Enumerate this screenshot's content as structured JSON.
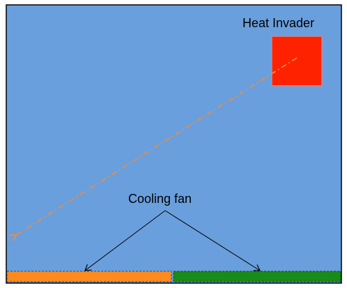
{
  "diagram": {
    "labels": {
      "heat_invader": "Heat Invader",
      "cooling_fan": "Cooling fan"
    },
    "colors": {
      "background": "#6a9fdd",
      "frame": "#000000",
      "heat_invader": "#ff2200",
      "heat_invader_edge": "#c9878f",
      "trajectory": "#f08a3c",
      "fan_left": "#ff8a1e",
      "fan_right": "#1a8a1a",
      "callout_lines": "#000000"
    },
    "components": {
      "heat_invader": "red square",
      "trajectory": "dash-dot arrow",
      "cooling_fan_left": "orange bar",
      "cooling_fan_right": "green bar"
    }
  }
}
